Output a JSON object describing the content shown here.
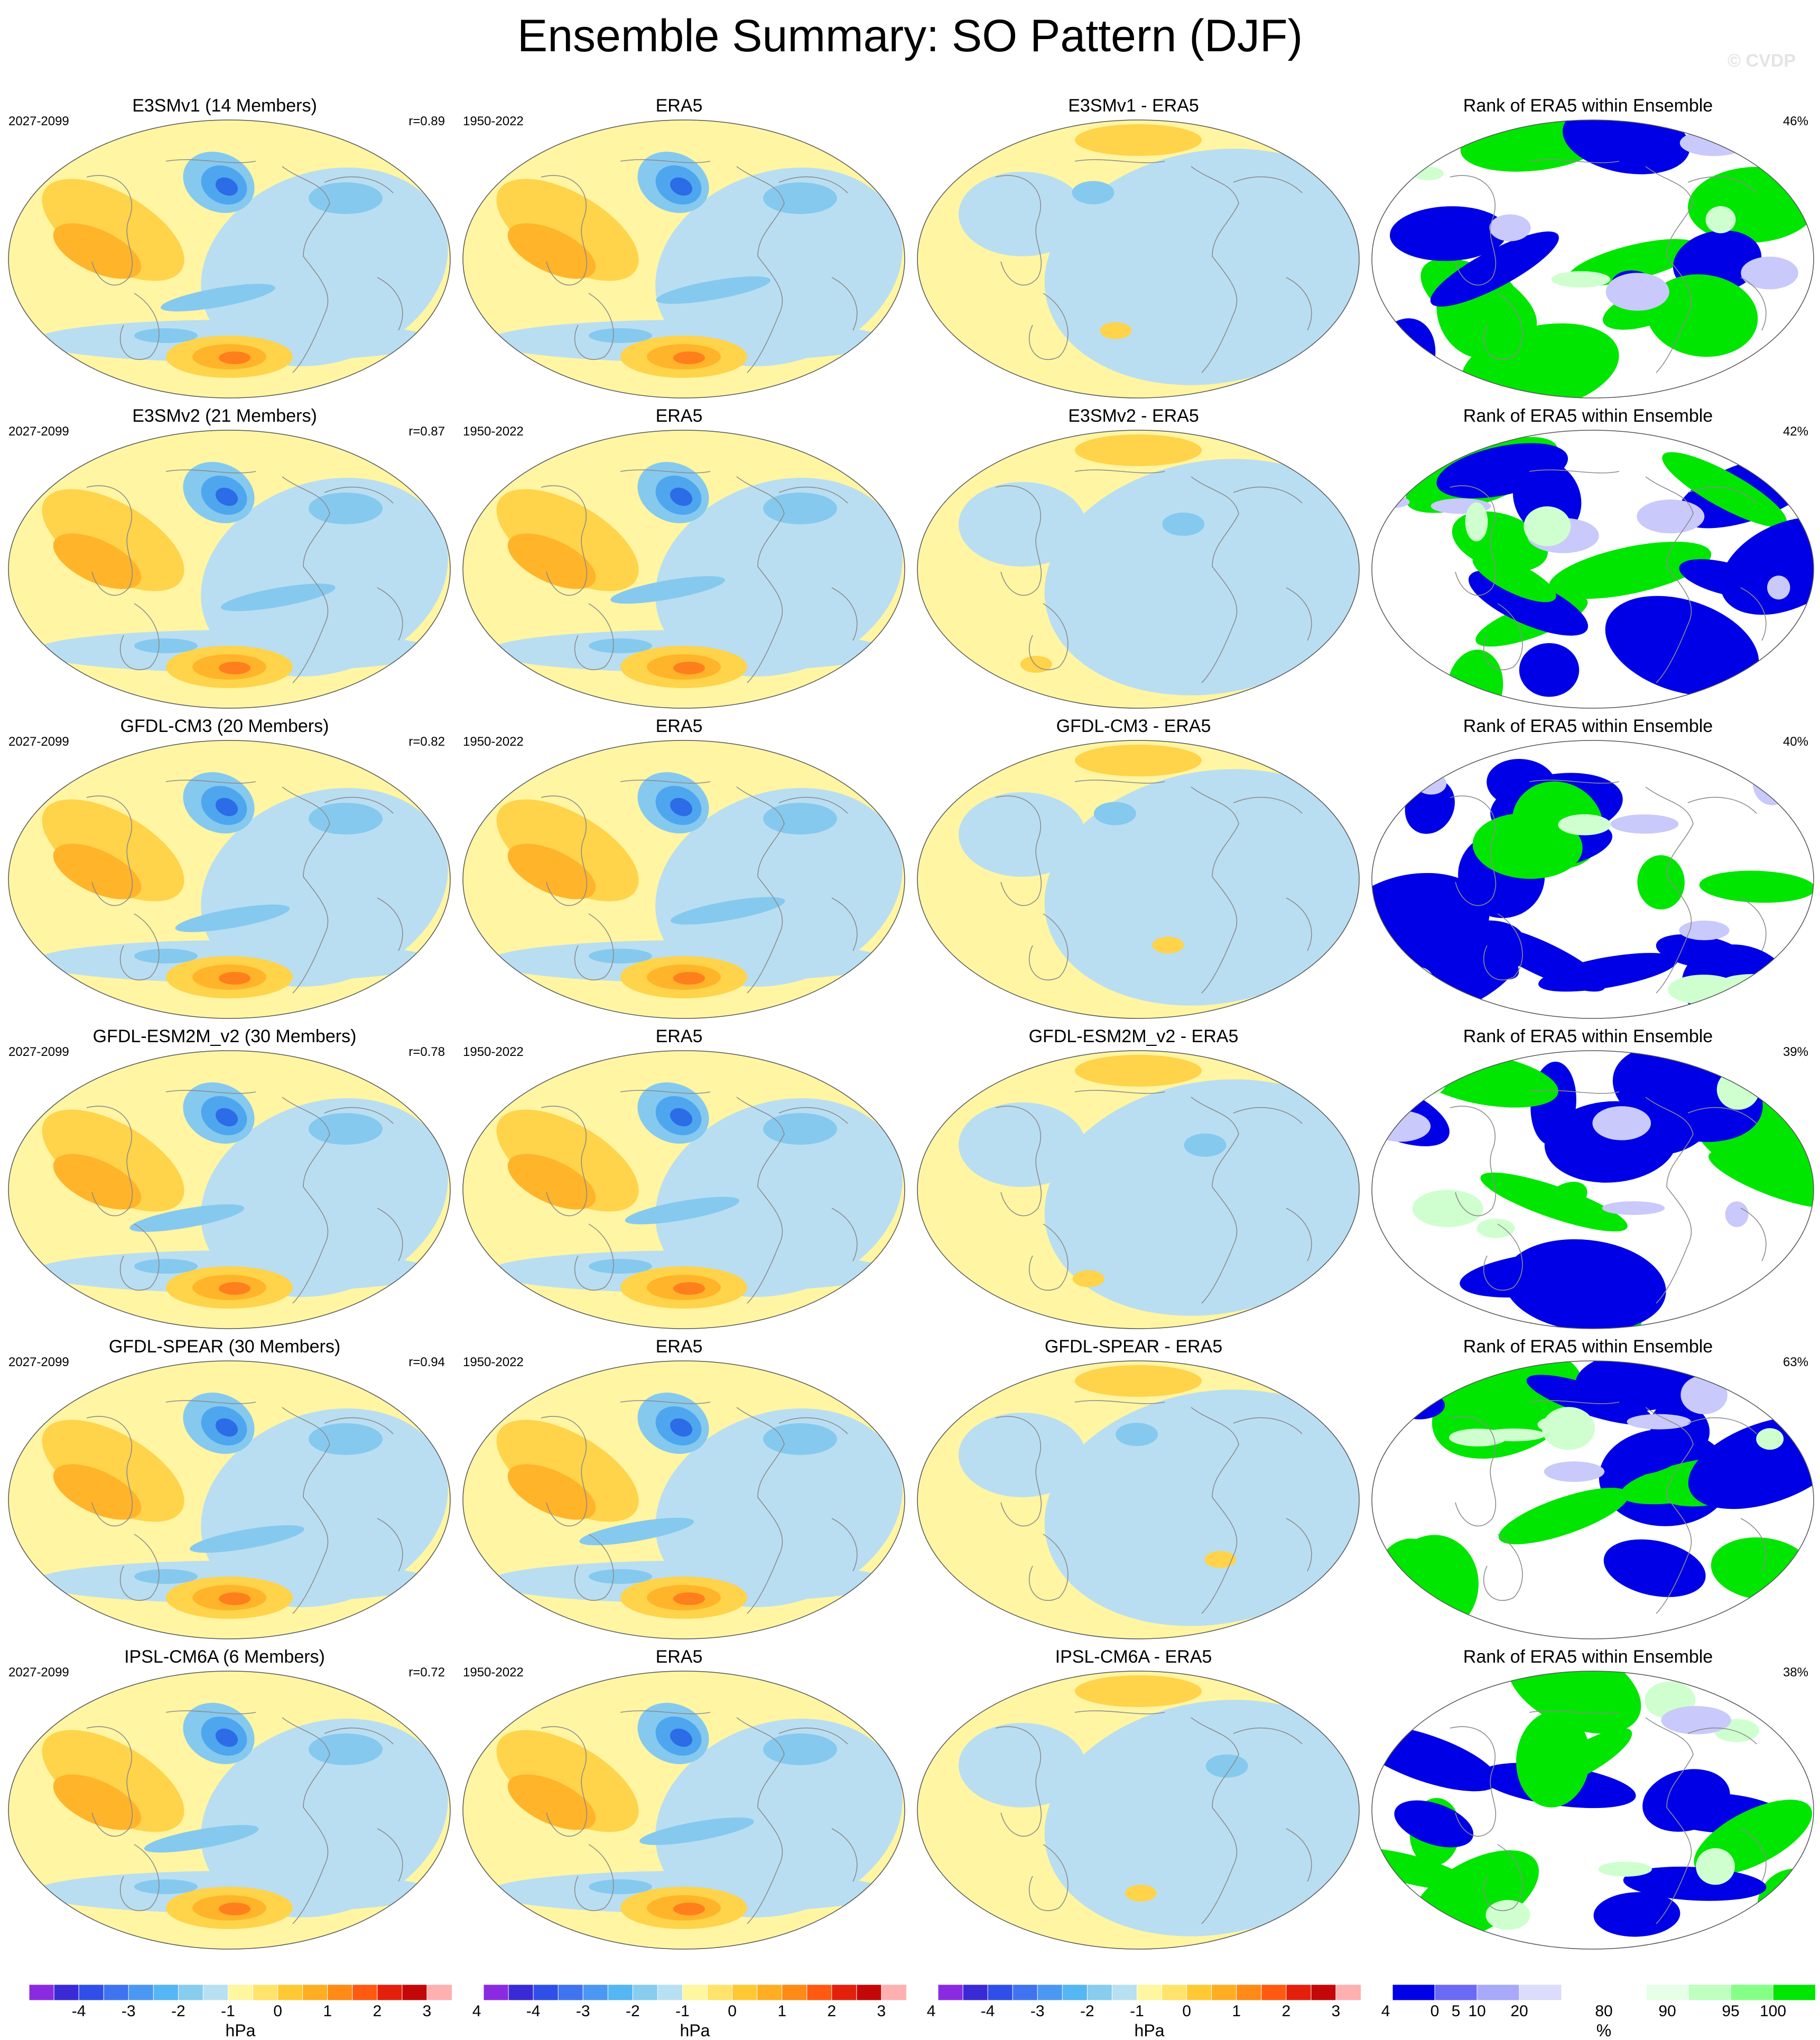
{
  "figure": {
    "title": "Ensemble Summary: SO Pattern (DJF)",
    "credit": "© CVDP"
  },
  "rows": [
    {
      "model_title": "E3SMv1 (14 Members)",
      "model_years": "2027-2099",
      "r": "r=0.89",
      "obs_title": "ERA5",
      "obs_years": "1950-2022",
      "diff_title": "E3SMv1 - ERA5",
      "rank_title": "Rank of ERA5 within Ensemble",
      "rank_pct": "46%"
    },
    {
      "model_title": "E3SMv2 (21 Members)",
      "model_years": "2027-2099",
      "r": "r=0.87",
      "obs_title": "ERA5",
      "obs_years": "1950-2022",
      "diff_title": "E3SMv2 - ERA5",
      "rank_title": "Rank of ERA5 within Ensemble",
      "rank_pct": "42%"
    },
    {
      "model_title": "GFDL-CM3 (20 Members)",
      "model_years": "2027-2099",
      "r": "r=0.82",
      "obs_title": "ERA5",
      "obs_years": "1950-2022",
      "diff_title": "GFDL-CM3 - ERA5",
      "rank_title": "Rank of ERA5 within Ensemble",
      "rank_pct": "40%"
    },
    {
      "model_title": "GFDL-ESM2M_v2 (30 Members)",
      "model_years": "2027-2099",
      "r": "r=0.78",
      "obs_title": "ERA5",
      "obs_years": "1950-2022",
      "diff_title": "GFDL-ESM2M_v2 - ERA5",
      "rank_title": "Rank of ERA5 within Ensemble",
      "rank_pct": "39%"
    },
    {
      "model_title": "GFDL-SPEAR (30 Members)",
      "model_years": "2027-2099",
      "r": "r=0.94",
      "obs_title": "ERA5",
      "obs_years": "1950-2022",
      "diff_title": "GFDL-SPEAR - ERA5",
      "rank_title": "Rank of ERA5 within Ensemble",
      "rank_pct": "63%"
    },
    {
      "model_title": "IPSL-CM6A (6 Members)",
      "model_years": "2027-2099",
      "r": "r=0.72",
      "obs_title": "ERA5",
      "obs_years": "1950-2022",
      "diff_title": "IPSL-CM6A - ERA5",
      "rank_title": "Rank of ERA5 within Ensemble",
      "rank_pct": "38%"
    }
  ],
  "colorbars": {
    "hpa": {
      "ticks": [
        "-4",
        "-3",
        "-2",
        "-1",
        "0",
        "1",
        "2",
        "3",
        "4"
      ],
      "unit": "hPa",
      "colors": [
        "#8a2be2",
        "#3a2ad6",
        "#2f4fe8",
        "#3f74f0",
        "#4a98f2",
        "#55b6f4",
        "#87cdee",
        "#b7e0f2",
        "#fff6a0",
        "#ffe36a",
        "#ffc933",
        "#ffae22",
        "#ff8a16",
        "#ff5a10",
        "#e3200c",
        "#c40808",
        "#ffb0b0"
      ]
    },
    "pct": {
      "ticks": [
        "0",
        "5",
        "10",
        "20",
        "80",
        "90",
        "95",
        "100"
      ],
      "unit": "%",
      "colors": [
        "#0000e6",
        "#6a6af5",
        "#a9a9fb",
        "#dcdcfc",
        "#ffffff",
        "#ffffff",
        "#e6ffe6",
        "#bfffbf",
        "#86ff86",
        "#00e600"
      ]
    }
  },
  "map_palette": {
    "land_line": "#8c8c8c",
    "neutral_pos": "#fff5a3",
    "neutral_neg": "#b9def2",
    "orange1": "#ffd34a",
    "orange2": "#ffb42a",
    "orange3": "#ff7f1c",
    "blue1": "#86c9ee",
    "blue2": "#4ea6ef",
    "blue3": "#2c6ce6",
    "rank_blue": "#0000e6",
    "rank_green": "#00e600",
    "rank_lightblue": "#c9c9fb",
    "rank_lightgreen": "#cfffcf"
  }
}
